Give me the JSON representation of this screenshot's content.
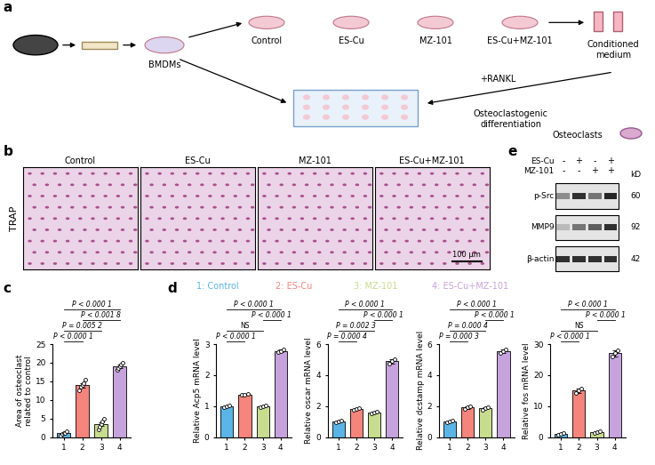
{
  "chart_data": [
    {
      "type": "bar",
      "ylabel": "Area of osteoclast\nrelated to control",
      "categories": [
        "1",
        "2",
        "3",
        "4"
      ],
      "values": [
        1,
        14,
        3.5,
        19
      ],
      "errors": [
        0.2,
        0.6,
        0.5,
        0.4
      ],
      "points": [
        [
          0.5,
          0.8,
          1,
          1.2,
          1.5
        ],
        [
          12.5,
          13.5,
          14,
          14.5,
          15.5
        ],
        [
          2,
          2.8,
          3.5,
          4.2,
          5
        ],
        [
          18,
          18.5,
          19,
          19.5,
          20
        ]
      ],
      "colors": [
        "#5ab4e5",
        "#f4847c",
        "#c8dc8f",
        "#c6a3dd"
      ],
      "ylim": [
        0,
        25
      ],
      "yticks": [
        0,
        5,
        10,
        15,
        20,
        25
      ],
      "comparisons": [
        {
          "between": [
            "1",
            "2"
          ],
          "label": "P < 0.000 1"
        },
        {
          "between": [
            "1",
            "3"
          ],
          "label": "P = 0.005 2"
        },
        {
          "between": [
            "2",
            "4"
          ],
          "label": "P < 0.001 8"
        },
        {
          "between": [
            "1",
            "4"
          ],
          "label": "P < 0.000 1"
        }
      ]
    },
    {
      "type": "bar",
      "ylabel": "Relative Acp5 mRNA level",
      "categories": [
        "1",
        "2",
        "3",
        "4"
      ],
      "values": [
        1.0,
        1.38,
        0.98,
        2.78
      ],
      "errors": [
        0.03,
        0.02,
        0.03,
        0.04
      ],
      "points": [
        [
          0.97,
          1.0,
          1.03
        ],
        [
          1.36,
          1.38,
          1.4
        ],
        [
          0.95,
          0.98,
          1.01
        ],
        [
          2.74,
          2.78,
          2.82
        ]
      ],
      "colors": [
        "#5ab4e5",
        "#f4847c",
        "#c8dc8f",
        "#c6a3dd"
      ],
      "ylim": [
        0,
        3
      ],
      "yticks": [
        0,
        1,
        2,
        3
      ],
      "comparisons": [
        {
          "between": [
            "1",
            "2"
          ],
          "label": "P < 0.000 1"
        },
        {
          "between": [
            "1",
            "3"
          ],
          "label": "NS"
        },
        {
          "between": [
            "3",
            "4"
          ],
          "label": "P < 0.000 1"
        },
        {
          "between": [
            "1",
            "4"
          ],
          "label": "P < 0.000 1"
        }
      ]
    },
    {
      "type": "bar",
      "ylabel": "Relative oscar mRNA level",
      "categories": [
        "1",
        "2",
        "3",
        "4"
      ],
      "values": [
        1.0,
        1.8,
        1.6,
        4.9
      ],
      "errors": [
        0.05,
        0.05,
        0.05,
        0.15
      ],
      "points": [
        [
          0.95,
          1.0,
          1.05
        ],
        [
          1.75,
          1.8,
          1.85
        ],
        [
          1.55,
          1.6,
          1.65
        ],
        [
          4.75,
          4.9,
          5.05
        ]
      ],
      "colors": [
        "#5ab4e5",
        "#f4847c",
        "#c8dc8f",
        "#c6a3dd"
      ],
      "ylim": [
        0,
        6
      ],
      "yticks": [
        0,
        2,
        4,
        6
      ],
      "comparisons": [
        {
          "between": [
            "1",
            "2"
          ],
          "label": "P = 0.000 4"
        },
        {
          "between": [
            "1",
            "3"
          ],
          "label": "P = 0.002 3"
        },
        {
          "between": [
            "3",
            "4"
          ],
          "label": "P < 0.000 1"
        },
        {
          "between": [
            "1",
            "4"
          ],
          "label": "P < 0.000 1"
        }
      ]
    },
    {
      "type": "bar",
      "ylabel": "Relative dcstamp mRNA level",
      "categories": [
        "1",
        "2",
        "3",
        "4"
      ],
      "values": [
        1.0,
        1.9,
        1.85,
        5.55
      ],
      "errors": [
        0.05,
        0.08,
        0.06,
        0.1
      ],
      "points": [
        [
          0.95,
          1.0,
          1.05
        ],
        [
          1.8,
          1.9,
          2.0
        ],
        [
          1.78,
          1.85,
          1.92
        ],
        [
          5.45,
          5.55,
          5.65
        ]
      ],
      "colors": [
        "#5ab4e5",
        "#f4847c",
        "#c8dc8f",
        "#c6a3dd"
      ],
      "ylim": [
        0,
        6
      ],
      "yticks": [
        0,
        2,
        4,
        6
      ],
      "comparisons": [
        {
          "between": [
            "1",
            "2"
          ],
          "label": "P = 0.000 3"
        },
        {
          "between": [
            "1",
            "3"
          ],
          "label": "P = 0.000 4"
        },
        {
          "between": [
            "3",
            "4"
          ],
          "label": "P < 0.000 1"
        },
        {
          "between": [
            "1",
            "4"
          ],
          "label": "P < 0.000 1"
        }
      ]
    },
    {
      "type": "bar",
      "ylabel": "Relative fos mRNA level",
      "categories": [
        "1",
        "2",
        "3",
        "4"
      ],
      "values": [
        1.0,
        15,
        1.5,
        27
      ],
      "errors": [
        0.2,
        0.7,
        0.3,
        1.0
      ],
      "points": [
        [
          0.8,
          1,
          1.2
        ],
        [
          14.3,
          15,
          15.7
        ],
        [
          1.2,
          1.5,
          1.8
        ],
        [
          26,
          27,
          28
        ]
      ],
      "colors": [
        "#5ab4e5",
        "#f4847c",
        "#c8dc8f",
        "#c6a3dd"
      ],
      "ylim": [
        0,
        30
      ],
      "yticks": [
        0,
        10,
        20,
        30
      ],
      "comparisons": [
        {
          "between": [
            "1",
            "2"
          ],
          "label": "P < 0.000 1"
        },
        {
          "between": [
            "1",
            "3"
          ],
          "label": "NS"
        },
        {
          "between": [
            "3",
            "4"
          ],
          "label": "P < 0.000 1"
        },
        {
          "between": [
            "1",
            "4"
          ],
          "label": "P < 0.000 1"
        }
      ]
    }
  ],
  "panel_letters": [
    "a",
    "b",
    "c",
    "d",
    "e"
  ],
  "group_key": [
    {
      "label": "1: Control",
      "color": "#5ab4e5"
    },
    {
      "label": "2: ES-Cu",
      "color": "#f4847c"
    },
    {
      "label": "3: MZ-101",
      "color": "#c8dc8f"
    },
    {
      "label": "4: ES-Cu+MZ-101",
      "color": "#c6a3dd"
    }
  ],
  "diagram": {
    "source": "BMDMs",
    "treatments": [
      "Control",
      "ES-Cu",
      "MZ-101",
      "ES-Cu+MZ-101"
    ],
    "collected": "Conditioned\nmedium",
    "stimulus": "+RANKL",
    "process": "Osteoclastogenic\ndifferentiation",
    "product": "Osteoclasts"
  },
  "images": {
    "stain": "TRAP",
    "conditions": [
      "Control",
      "ES-Cu",
      "MZ-101",
      "ES-Cu+MZ-101"
    ],
    "scale_bar": "100 μm"
  },
  "blot": {
    "unit": "kD",
    "treatments": [
      {
        "name": "ES-Cu",
        "signs": [
          "-",
          "+",
          "-",
          "+"
        ]
      },
      {
        "name": "MZ-101",
        "signs": [
          "-",
          "-",
          "+",
          "+"
        ]
      }
    ],
    "rows": [
      {
        "name": "p-Src",
        "mw": "60",
        "intensity": [
          0.5,
          0.9,
          0.6,
          0.95
        ]
      },
      {
        "name": "MMP9",
        "mw": "92",
        "intensity": [
          0.3,
          0.6,
          0.7,
          0.9
        ]
      },
      {
        "name": "β-actin",
        "mw": "42",
        "intensity": [
          0.9,
          0.9,
          0.9,
          0.9
        ]
      }
    ]
  }
}
